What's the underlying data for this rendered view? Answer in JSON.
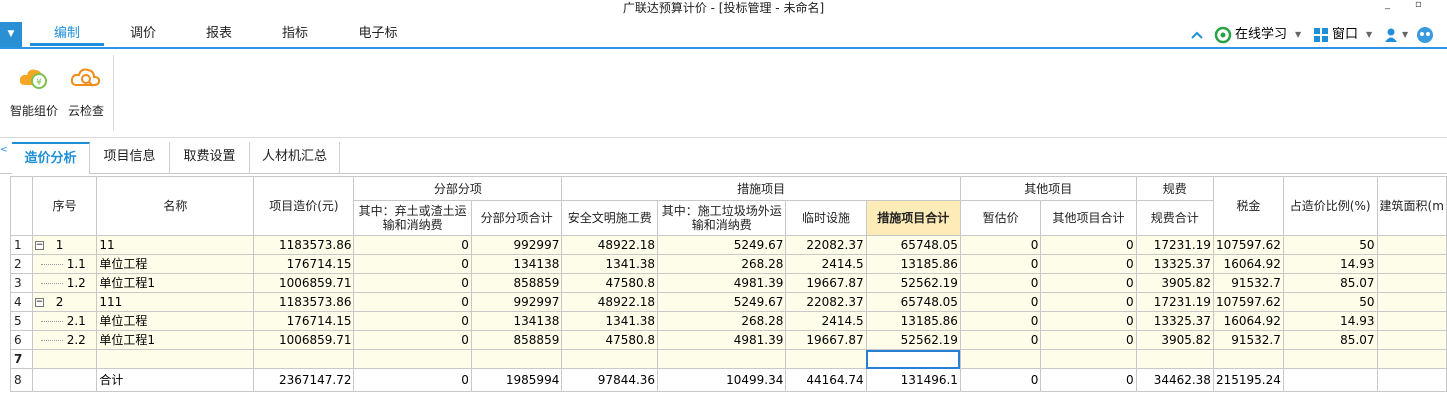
{
  "window": {
    "title": "广联达预算计价 - [投标管理 - 未命名]"
  },
  "menu": {
    "tabs": [
      {
        "label": "编制",
        "active": true
      },
      {
        "label": "调价",
        "active": false
      },
      {
        "label": "报表",
        "active": false
      },
      {
        "label": "指标",
        "active": false
      },
      {
        "label": "电子标",
        "active": false
      }
    ],
    "right": {
      "online_learning": "在线学习",
      "window": "窗口"
    }
  },
  "ribbon": {
    "buttons": [
      {
        "label": "智能组价",
        "icon": "cloud-yuan-icon"
      },
      {
        "label": "云检查",
        "icon": "cloud-search-icon"
      }
    ]
  },
  "subtabs": [
    {
      "label": "造价分析",
      "active": true
    },
    {
      "label": "项目信息",
      "active": false
    },
    {
      "label": "取费设置",
      "active": false
    },
    {
      "label": "人材机汇总",
      "active": false
    }
  ],
  "table": {
    "headers": {
      "seq": "序号",
      "name": "名称",
      "project_cost": "项目造价(元)",
      "fbfx": "分部分项",
      "fbfx_waste": "其中：弃土或渣土运输和消纳费",
      "fbfx_total": "分部分项合计",
      "csxm": "措施项目",
      "safety": "安全文明施工费",
      "cs_waste": "其中：施工垃圾场外运输和消纳费",
      "temp": "临时设施",
      "cs_total": "措施项目合计",
      "other": "其他项目",
      "provisional": "暂估价",
      "other_total": "其他项目合计",
      "fees": "规费",
      "fees_total": "规费合计",
      "tax": "税金",
      "ratio": "占造价比例(%)",
      "area": "建筑面积(m"
    },
    "rows": [
      {
        "rn": "1",
        "tree": "box",
        "seq": "1",
        "name": "11",
        "project_cost": "1183573.86",
        "fbfx_waste": "0",
        "fbfx_total": "992997",
        "safety": "48922.18",
        "cs_waste": "5249.67",
        "temp": "22082.37",
        "cs_total": "65748.05",
        "provisional": "0",
        "other_total": "0",
        "fees_total": "17231.19",
        "tax": "107597.62",
        "ratio": "50",
        "area": ""
      },
      {
        "rn": "2",
        "tree": "line",
        "seq": "1.1",
        "name": "单位工程",
        "project_cost": "176714.15",
        "fbfx_waste": "0",
        "fbfx_total": "134138",
        "safety": "1341.38",
        "cs_waste": "268.28",
        "temp": "2414.5",
        "cs_total": "13185.86",
        "provisional": "0",
        "other_total": "0",
        "fees_total": "13325.37",
        "tax": "16064.92",
        "ratio": "14.93",
        "area": ""
      },
      {
        "rn": "3",
        "tree": "line",
        "seq": "1.2",
        "name": "单位工程1",
        "project_cost": "1006859.71",
        "fbfx_waste": "0",
        "fbfx_total": "858859",
        "safety": "47580.8",
        "cs_waste": "4981.39",
        "temp": "19667.87",
        "cs_total": "52562.19",
        "provisional": "0",
        "other_total": "0",
        "fees_total": "3905.82",
        "tax": "91532.7",
        "ratio": "85.07",
        "area": ""
      },
      {
        "rn": "4",
        "tree": "box",
        "seq": "2",
        "name": "111",
        "project_cost": "1183573.86",
        "fbfx_waste": "0",
        "fbfx_total": "992997",
        "safety": "48922.18",
        "cs_waste": "5249.67",
        "temp": "22082.37",
        "cs_total": "65748.05",
        "provisional": "0",
        "other_total": "0",
        "fees_total": "17231.19",
        "tax": "107597.62",
        "ratio": "50",
        "area": ""
      },
      {
        "rn": "5",
        "tree": "line",
        "seq": "2.1",
        "name": "单位工程",
        "project_cost": "176714.15",
        "fbfx_waste": "0",
        "fbfx_total": "134138",
        "safety": "1341.38",
        "cs_waste": "268.28",
        "temp": "2414.5",
        "cs_total": "13185.86",
        "provisional": "0",
        "other_total": "0",
        "fees_total": "13325.37",
        "tax": "16064.92",
        "ratio": "14.93",
        "area": ""
      },
      {
        "rn": "6",
        "tree": "line",
        "seq": "2.2",
        "name": "单位工程1",
        "project_cost": "1006859.71",
        "fbfx_waste": "0",
        "fbfx_total": "858859",
        "safety": "47580.8",
        "cs_waste": "4981.39",
        "temp": "19667.87",
        "cs_total": "52562.19",
        "provisional": "0",
        "other_total": "0",
        "fees_total": "3905.82",
        "tax": "91532.7",
        "ratio": "85.07",
        "area": ""
      },
      {
        "rn": "7",
        "tree": "none",
        "seq": "",
        "name": "",
        "project_cost": "",
        "fbfx_waste": "",
        "fbfx_total": "",
        "safety": "",
        "cs_waste": "",
        "temp": "",
        "cs_total": "",
        "provisional": "",
        "other_total": "",
        "fees_total": "",
        "tax": "",
        "ratio": "",
        "area": ""
      },
      {
        "rn": "8",
        "tree": "none",
        "seq": "",
        "name": "合计",
        "project_cost": "2367147.72",
        "fbfx_waste": "0",
        "fbfx_total": "1985994",
        "safety": "97844.36",
        "cs_waste": "10499.34",
        "temp": "44164.74",
        "cs_total": "131496.1",
        "provisional": "0",
        "other_total": "0",
        "fees_total": "34462.38",
        "tax": "215195.24",
        "ratio": "",
        "area": ""
      }
    ]
  },
  "colors": {
    "accent": "#1e8fd8",
    "row_bg": "#fefde9",
    "header_highlight": "#fdebb8"
  }
}
